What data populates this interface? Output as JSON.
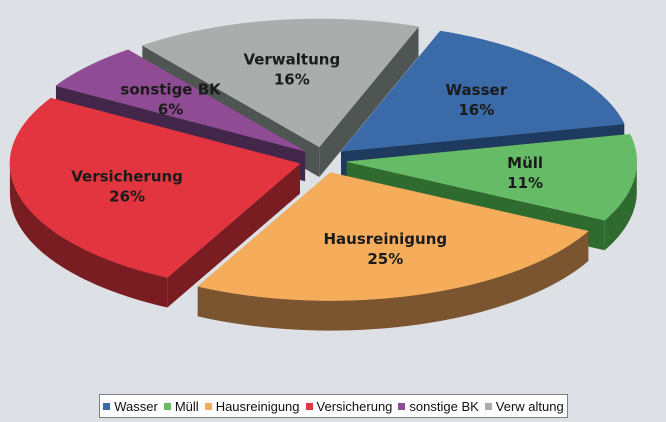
{
  "chart_data": {
    "type": "pie",
    "style": "3d-exploded",
    "title": "",
    "slices": [
      {
        "label": "Wasser",
        "value": 16,
        "value_label": "16%",
        "color": "#3a6aa8",
        "side_color": "#1e3a5f"
      },
      {
        "label": "Müll",
        "value": 11,
        "value_label": "11%",
        "color": "#66bb66",
        "side_color": "#2f6b2f"
      },
      {
        "label": "Hausreinigung",
        "value": 25,
        "value_label": "25%",
        "color": "#f5ad5b",
        "side_color": "#7a5530"
      },
      {
        "label": "Versicherung",
        "value": 26,
        "value_label": "26%",
        "color": "#e23540",
        "side_color": "#7a1d22"
      },
      {
        "label": "sonstige BK",
        "value": 6,
        "value_label": "6%",
        "color": "#8f4c95",
        "side_color": "#43274a"
      },
      {
        "label": "Verwaltung",
        "value": 16,
        "value_label": "16%",
        "color": "#a9aeac",
        "side_color": "#4f5552"
      }
    ],
    "legend": {
      "placement": "bottom",
      "entries": [
        "Wasser",
        "Müll",
        "Hausreinigung",
        "Versicherung",
        "sonstige BK",
        "Verw altung"
      ]
    }
  }
}
